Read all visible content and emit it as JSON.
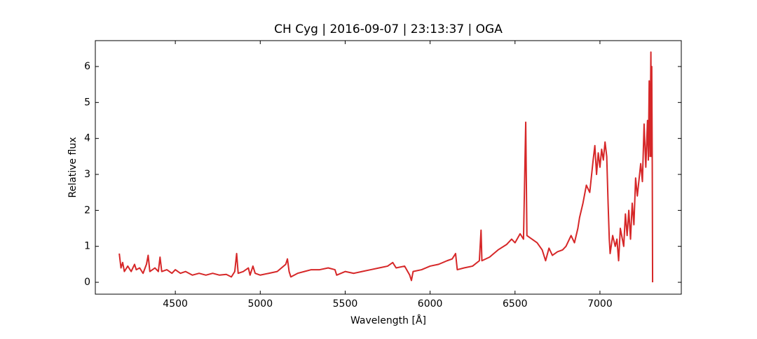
{
  "chart_data": {
    "type": "line",
    "title": "CH Cyg | 2016-09-07 | 23:13:37 | OGA",
    "x_label": "Wavelength [Å]",
    "y_label": "Relative flux",
    "xlim": [
      4029,
      7479
    ],
    "ylim": [
      -0.33,
      6.72
    ],
    "xticks": [
      4500,
      5000,
      5500,
      6000,
      6500,
      7000
    ],
    "yticks": [
      0,
      1,
      2,
      3,
      4,
      5,
      6
    ],
    "series": [
      {
        "color": "#d62728",
        "x": [
          4170,
          4180,
          4190,
          4200,
          4220,
          4240,
          4260,
          4270,
          4290,
          4310,
          4330,
          4340,
          4350,
          4380,
          4400,
          4410,
          4420,
          4450,
          4480,
          4500,
          4530,
          4560,
          4600,
          4640,
          4680,
          4720,
          4760,
          4800,
          4830,
          4850,
          4861,
          4870,
          4900,
          4930,
          4940,
          4957,
          4970,
          5000,
          5050,
          5100,
          5150,
          5160,
          5170,
          5180,
          5220,
          5260,
          5300,
          5350,
          5400,
          5440,
          5450,
          5500,
          5550,
          5600,
          5650,
          5700,
          5750,
          5780,
          5800,
          5850,
          5880,
          5890,
          5900,
          5950,
          6000,
          6050,
          6100,
          6130,
          6150,
          6160,
          6200,
          6250,
          6290,
          6300,
          6305,
          6350,
          6400,
          6450,
          6480,
          6500,
          6530,
          6550,
          6563,
          6570,
          6600,
          6630,
          6660,
          6680,
          6700,
          6720,
          6750,
          6780,
          6800,
          6830,
          6850,
          6870,
          6880,
          6900,
          6920,
          6940,
          6960,
          6970,
          6980,
          6990,
          7000,
          7010,
          7020,
          7030,
          7040,
          7048,
          7055,
          7060,
          7075,
          7090,
          7100,
          7110,
          7120,
          7140,
          7150,
          7160,
          7170,
          7180,
          7190,
          7200,
          7210,
          7220,
          7240,
          7250,
          7260,
          7270,
          7280,
          7285,
          7290,
          7295,
          7300,
          7303,
          7305,
          7308,
          7310
        ],
        "values": [
          0.8,
          0.4,
          0.55,
          0.3,
          0.45,
          0.3,
          0.5,
          0.35,
          0.4,
          0.25,
          0.5,
          0.75,
          0.3,
          0.4,
          0.3,
          0.7,
          0.3,
          0.35,
          0.25,
          0.35,
          0.25,
          0.3,
          0.2,
          0.25,
          0.2,
          0.25,
          0.2,
          0.22,
          0.15,
          0.3,
          0.8,
          0.25,
          0.3,
          0.4,
          0.2,
          0.45,
          0.25,
          0.2,
          0.25,
          0.3,
          0.5,
          0.65,
          0.3,
          0.15,
          0.25,
          0.3,
          0.35,
          0.35,
          0.4,
          0.35,
          0.2,
          0.3,
          0.25,
          0.3,
          0.35,
          0.4,
          0.45,
          0.55,
          0.4,
          0.45,
          0.2,
          0.05,
          0.3,
          0.35,
          0.45,
          0.5,
          0.6,
          0.65,
          0.8,
          0.35,
          0.4,
          0.45,
          0.6,
          1.45,
          0.6,
          0.7,
          0.9,
          1.05,
          1.2,
          1.1,
          1.35,
          1.2,
          4.45,
          1.3,
          1.2,
          1.1,
          0.9,
          0.6,
          0.95,
          0.75,
          0.85,
          0.9,
          1.0,
          1.3,
          1.1,
          1.5,
          1.8,
          2.2,
          2.7,
          2.5,
          3.4,
          3.8,
          3.0,
          3.6,
          3.2,
          3.7,
          3.4,
          3.9,
          3.5,
          2.2,
          1.2,
          0.8,
          1.3,
          1.0,
          1.2,
          0.6,
          1.5,
          1.0,
          1.9,
          1.3,
          2.0,
          1.2,
          2.2,
          1.6,
          2.9,
          2.4,
          3.3,
          2.8,
          4.4,
          3.2,
          4.5,
          3.4,
          5.6,
          3.5,
          6.4,
          3.5,
          6.0,
          3.3,
          0.0
        ]
      }
    ]
  }
}
